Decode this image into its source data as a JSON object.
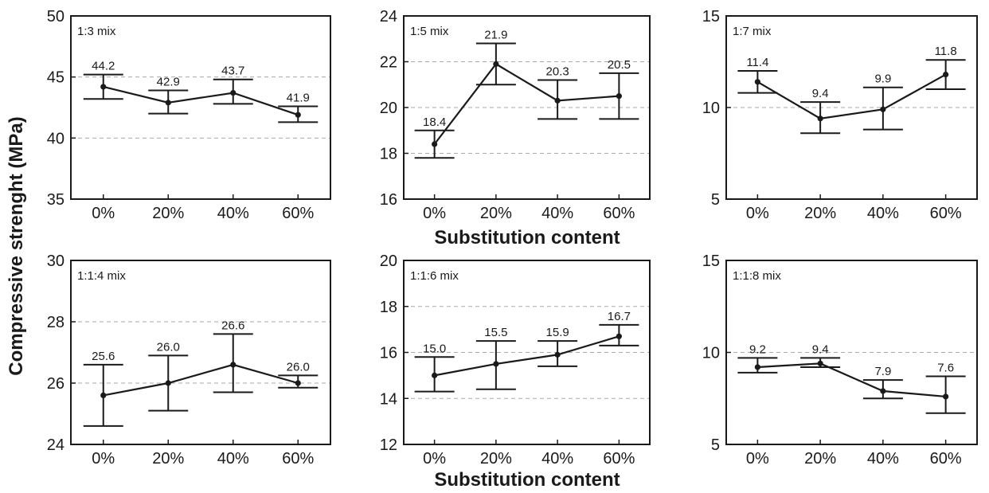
{
  "ylabel": "Compressive strenght (MPa)",
  "xlabel": "Substitution content",
  "chart_data": [
    {
      "type": "line",
      "label": "1:3 mix",
      "categories": [
        "0%",
        "20%",
        "40%",
        "60%"
      ],
      "values": [
        44.2,
        42.9,
        43.7,
        41.9
      ],
      "err_low": [
        43.2,
        42.0,
        42.8,
        41.3
      ],
      "err_high": [
        45.2,
        43.9,
        44.8,
        42.6
      ],
      "ylim": [
        35,
        50
      ],
      "yticks": [
        35,
        40,
        45,
        50
      ],
      "grid": [
        40,
        45
      ],
      "data_labels": [
        "44.2",
        "42.9",
        "43.7",
        "41.9"
      ]
    },
    {
      "type": "line",
      "label": "1:5 mix",
      "categories": [
        "0%",
        "20%",
        "40%",
        "60%"
      ],
      "values": [
        18.4,
        21.9,
        20.3,
        20.5
      ],
      "err_low": [
        17.8,
        21.0,
        19.5,
        19.5
      ],
      "err_high": [
        19.0,
        22.8,
        21.2,
        21.5
      ],
      "ylim": [
        16,
        24
      ],
      "yticks": [
        16,
        18,
        20,
        22,
        24
      ],
      "grid": [
        18,
        20,
        22
      ],
      "data_labels": [
        "18.4",
        "21.9",
        "20.3",
        "20.5"
      ]
    },
    {
      "type": "line",
      "label": "1:7 mix",
      "categories": [
        "0%",
        "20%",
        "40%",
        "60%"
      ],
      "values": [
        11.4,
        9.4,
        9.9,
        11.8
      ],
      "err_low": [
        10.8,
        8.6,
        8.8,
        11.0
      ],
      "err_high": [
        12.0,
        10.3,
        11.1,
        12.6
      ],
      "ylim": [
        5,
        15
      ],
      "yticks": [
        5,
        10,
        15
      ],
      "grid": [
        10
      ],
      "data_labels": [
        "11.4",
        "9.4",
        "9.9",
        "11.8"
      ]
    },
    {
      "type": "line",
      "label": "1:1:4 mix",
      "categories": [
        "0%",
        "20%",
        "40%",
        "60%"
      ],
      "values": [
        25.6,
        26.0,
        26.6,
        26.0
      ],
      "err_low": [
        24.6,
        25.1,
        25.7,
        25.85
      ],
      "err_high": [
        26.6,
        26.9,
        27.6,
        26.25
      ],
      "ylim": [
        24,
        30
      ],
      "yticks": [
        24,
        26,
        28,
        30
      ],
      "grid": [
        26,
        28
      ],
      "data_labels": [
        "25.6",
        "26.0",
        "26.6",
        "26.0"
      ]
    },
    {
      "type": "line",
      "label": "1:1:6 mix",
      "categories": [
        "0%",
        "20%",
        "40%",
        "60%"
      ],
      "values": [
        15.0,
        15.5,
        15.9,
        16.7
      ],
      "err_low": [
        14.3,
        14.4,
        15.4,
        16.3
      ],
      "err_high": [
        15.8,
        16.5,
        16.5,
        17.2
      ],
      "ylim": [
        12,
        20
      ],
      "yticks": [
        12,
        14,
        16,
        18,
        20
      ],
      "grid": [
        14,
        16,
        18
      ],
      "data_labels": [
        "15.0",
        "15.5",
        "15.9",
        "16.7"
      ]
    },
    {
      "type": "line",
      "label": "1:1:8 mix",
      "categories": [
        "0%",
        "20%",
        "40%",
        "60%"
      ],
      "values": [
        9.2,
        9.4,
        7.9,
        7.6
      ],
      "err_low": [
        8.9,
        9.2,
        7.5,
        6.7
      ],
      "err_high": [
        9.7,
        9.7,
        8.5,
        8.7
      ],
      "ylim": [
        5,
        15
      ],
      "yticks": [
        5,
        10,
        15
      ],
      "grid": [
        10
      ],
      "data_labels": [
        "9.2",
        "9.4",
        "7.9",
        "7.6"
      ]
    }
  ]
}
